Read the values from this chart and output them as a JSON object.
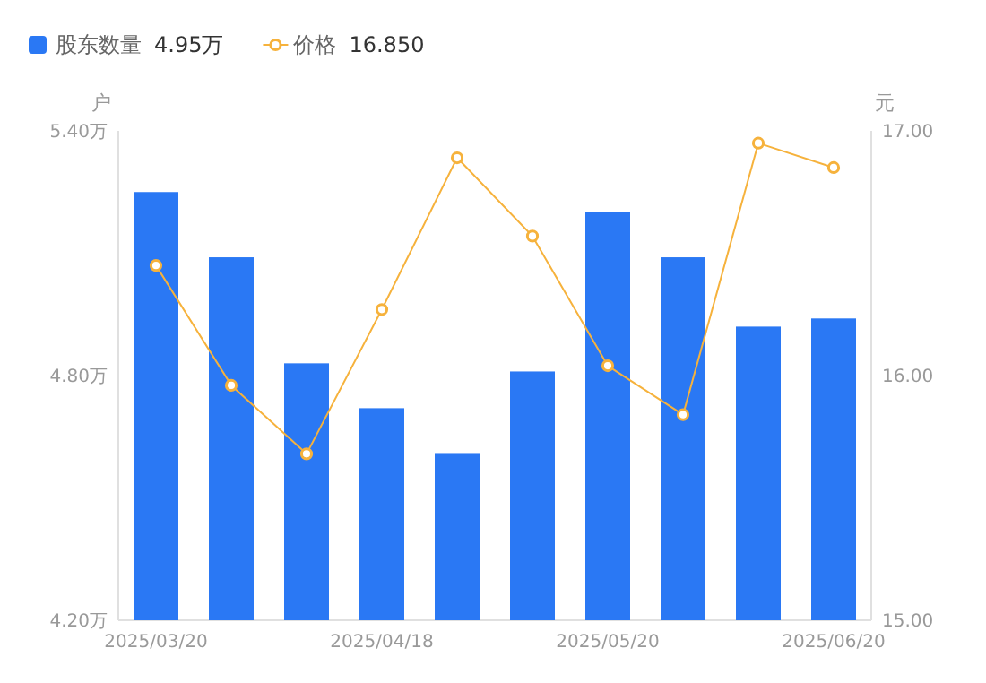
{
  "chart_data": {
    "type": "bar",
    "categories": [
      "2025/03/20",
      null,
      null,
      "2025/04/18",
      null,
      null,
      "2025/05/20",
      null,
      null,
      "2025/06/20"
    ],
    "series": [
      {
        "name": "股东数量",
        "color": "#2a78f4",
        "values": [
          5.25,
          5.09,
          4.83,
          4.72,
          4.61,
          4.81,
          5.2,
          5.09,
          4.92,
          4.94
        ]
      },
      {
        "name": "价格",
        "type": "line",
        "axis": "y2",
        "color": "#f6b23c",
        "marker": "circle",
        "values": [
          16.45,
          15.96,
          15.68,
          16.27,
          16.89,
          16.57,
          16.04,
          15.84,
          16.95,
          16.85
        ]
      }
    ],
    "ylabel": "户",
    "y2label": "元",
    "ylim": [
      4.2,
      5.4
    ],
    "yticks": [
      {
        "value": 4.2,
        "label": "4.20万"
      },
      {
        "value": 4.8,
        "label": "4.80万"
      },
      {
        "value": 5.4,
        "label": "5.40万"
      }
    ],
    "y2lim": [
      15,
      17
    ],
    "y2ticks": [
      {
        "value": 15,
        "label": "15.00"
      },
      {
        "value": 16,
        "label": "16.00"
      },
      {
        "value": 17,
        "label": "17.00"
      }
    ],
    "legend": "top left",
    "annotations": [
      "4.95万",
      "16.850"
    ]
  }
}
